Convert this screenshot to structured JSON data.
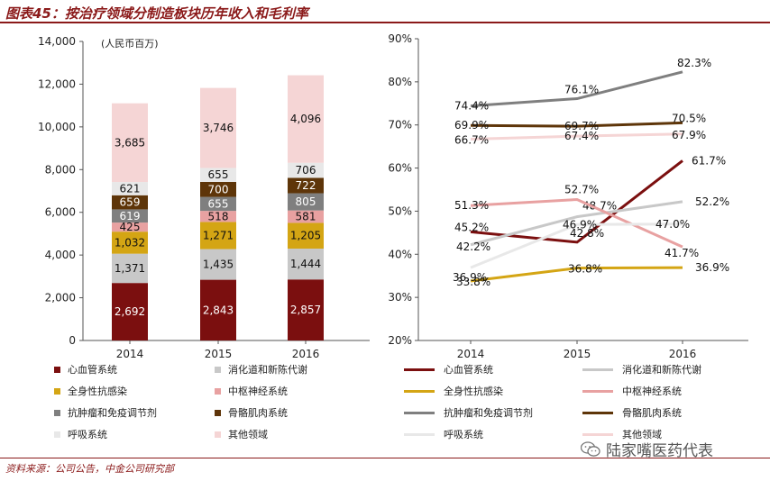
{
  "header": {
    "title": "图表45：按治疗领域分制造板块历年收入和毛利率"
  },
  "footer": {
    "source": "资料来源：公司公告，中金公司研究部",
    "watermark": "陆家嘴医药代表"
  },
  "colors": {
    "cardio": "#7b0f0f",
    "digestive": "#c8c8c8",
    "anti_infect": "#d4a514",
    "cns": "#e8a1a1",
    "oncology": "#7f7f7f",
    "musculo": "#5e3509",
    "respiratory": "#e8e8e8",
    "other": "#f5d5d5"
  },
  "chart_data": [
    {
      "type": "bar",
      "stacked": true,
      "unit_label": "(人民币百万)",
      "categories": [
        "2014",
        "2015",
        "2016"
      ],
      "ylim": [
        0,
        14000
      ],
      "yticks": [
        "0",
        "2,000",
        "4,000",
        "6,000",
        "8,000",
        "10,000",
        "12,000",
        "14,000"
      ],
      "series": [
        {
          "key": "cardio",
          "name": "心血管系统",
          "values": [
            2692,
            2843,
            2857
          ],
          "labels": [
            "2,692",
            "2,843",
            "2,857"
          ]
        },
        {
          "key": "digestive",
          "name": "消化道和新陈代谢",
          "values": [
            1371,
            1435,
            1444
          ],
          "labels": [
            "1,371",
            "1,435",
            "1,444"
          ]
        },
        {
          "key": "anti_infect",
          "name": "全身性抗感染",
          "values": [
            1032,
            1271,
            1205
          ],
          "labels": [
            "1,032",
            "1,271",
            "1,205"
          ]
        },
        {
          "key": "cns",
          "name": "中枢神经系统",
          "values": [
            425,
            518,
            581
          ],
          "labels": [
            "425",
            "518",
            "581"
          ]
        },
        {
          "key": "oncology",
          "name": "抗肿瘤和免疫调节剂",
          "values": [
            619,
            655,
            805
          ],
          "labels": [
            "619",
            "655",
            "805"
          ]
        },
        {
          "key": "musculo",
          "name": "骨骼肌肉系统",
          "values": [
            659,
            700,
            722
          ],
          "labels": [
            "659",
            "700",
            "722"
          ]
        },
        {
          "key": "respiratory",
          "name": "呼吸系统",
          "values": [
            621,
            655,
            706
          ],
          "labels": [
            "621",
            "655",
            "706"
          ]
        },
        {
          "key": "other",
          "name": "其他领域",
          "values": [
            3685,
            3746,
            4096
          ],
          "labels": [
            "3,685",
            "3,746",
            "4,096"
          ]
        }
      ]
    },
    {
      "type": "line",
      "categories": [
        "2014",
        "2015",
        "2016"
      ],
      "ylim": [
        20,
        90
      ],
      "yticks": [
        "20%",
        "30%",
        "40%",
        "50%",
        "60%",
        "70%",
        "80%",
        "90%"
      ],
      "series": [
        {
          "key": "cardio",
          "name": "心血管系统",
          "values": [
            45.2,
            42.8,
            61.7
          ],
          "labels": [
            "45.2%",
            "42.8%",
            "61.7%"
          ]
        },
        {
          "key": "digestive",
          "name": "消化道和新陈代谢",
          "values": [
            42.2,
            48.7,
            52.2
          ],
          "labels": [
            "42.2%",
            "48.7%",
            "52.2%"
          ]
        },
        {
          "key": "anti_infect",
          "name": "全身性抗感染",
          "values": [
            33.8,
            36.8,
            36.9
          ],
          "labels": [
            "33.8%",
            "36.8%",
            "36.9%"
          ]
        },
        {
          "key": "cns",
          "name": "中枢神经系统",
          "values": [
            51.3,
            52.7,
            41.7
          ],
          "labels": [
            "51.3%",
            "52.7%",
            "41.7%"
          ]
        },
        {
          "key": "oncology",
          "name": "抗肿瘤和免疫调节剂",
          "values": [
            74.4,
            76.1,
            82.3
          ],
          "labels": [
            "74.4%",
            "76.1%",
            "82.3%"
          ]
        },
        {
          "key": "musculo",
          "name": "骨骼肌肉系统",
          "values": [
            69.9,
            69.7,
            70.5
          ],
          "labels": [
            "69.9%",
            "69.7%",
            "70.5%"
          ]
        },
        {
          "key": "respiratory",
          "name": "呼吸系统",
          "values": [
            36.9,
            46.9,
            47.0
          ],
          "labels": [
            "36.9%",
            "46.9%",
            "47.0%"
          ]
        },
        {
          "key": "other",
          "name": "其他领域",
          "values": [
            66.7,
            67.4,
            67.9
          ],
          "labels": [
            "66.7%",
            "67.4%",
            "67.9%"
          ]
        }
      ]
    }
  ]
}
